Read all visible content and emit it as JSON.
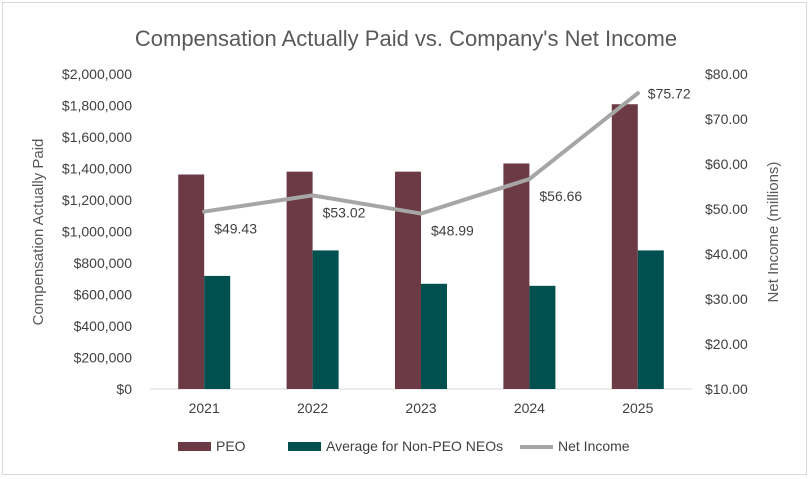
{
  "chart_data": {
    "type": "bar",
    "title": "Compensation Actually Paid vs. Company's Net Income",
    "categories": [
      "2021",
      "2022",
      "2023",
      "2024",
      "2025"
    ],
    "ylabel": "Compensation Actually Paid",
    "y2label": "Net Income (millions)",
    "ylim": [
      0,
      2000000
    ],
    "y2lim": [
      10,
      80
    ],
    "yticks": [
      "$0",
      "$200,000",
      "$400,000",
      "$600,000",
      "$800,000",
      "$1,000,000",
      "$1,200,000",
      "$1,400,000",
      "$1,600,000",
      "$1,800,000",
      "$2,000,000"
    ],
    "y2ticks": [
      "$10.00",
      "$20.00",
      "$30.00",
      "$40.00",
      "$50.00",
      "$60.00",
      "$70.00",
      "$80.00"
    ],
    "series": [
      {
        "name": "PEO",
        "type": "bar",
        "axis": "left",
        "color": "#6b3a45",
        "values": [
          1362000,
          1380000,
          1380000,
          1432000,
          1808000
        ]
      },
      {
        "name": "Average for Non-PEO NEOs",
        "type": "bar",
        "axis": "left",
        "color": "#005050",
        "values": [
          718000,
          880000,
          668000,
          655000,
          880000
        ]
      },
      {
        "name": "Net Income",
        "type": "line",
        "axis": "right",
        "color": "#a6a6a6",
        "values": [
          49.43,
          53.02,
          48.99,
          56.66,
          75.72
        ],
        "labels": [
          "$49.43",
          "$53.02",
          "$48.99",
          "$56.66",
          "$75.72"
        ]
      }
    ],
    "grid": false,
    "legend": "bottom"
  }
}
